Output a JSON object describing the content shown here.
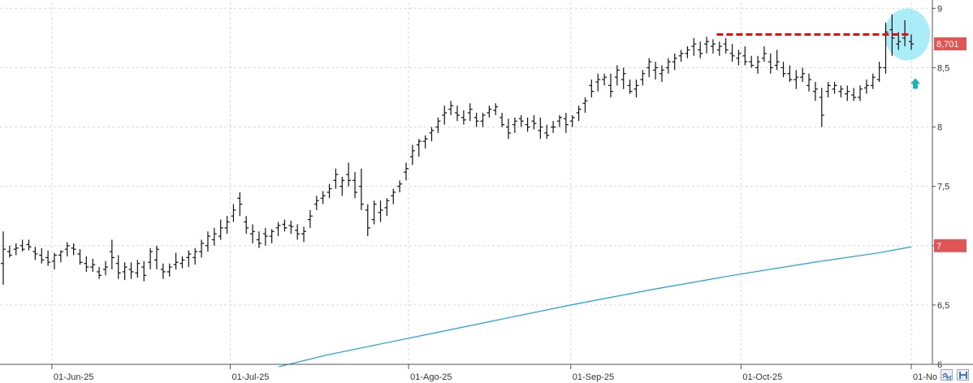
{
  "chart_data": {
    "type": "ohlc",
    "y_axis": {
      "side": "right",
      "range": [
        6,
        9.05
      ],
      "ticks": [
        {
          "value": 9,
          "label": "9"
        },
        {
          "value": 8.5,
          "label": "8,5"
        },
        {
          "value": 8,
          "label": "8"
        },
        {
          "value": 7.5,
          "label": "7,5"
        },
        {
          "value": 7,
          "label": "7"
        },
        {
          "value": 6.5,
          "label": "6,5"
        },
        {
          "value": 6,
          "label": "6"
        }
      ],
      "grid": true
    },
    "x_axis": {
      "range": [
        0,
        112
      ],
      "ticks": [
        {
          "x": 6,
          "label": "01-Jun-25"
        },
        {
          "x": 28,
          "label": "01-Jul-25"
        },
        {
          "x": 50,
          "label": "01-Ago-25"
        },
        {
          "x": 70,
          "label": "01-Sep-25"
        },
        {
          "x": 91,
          "label": "01-Oct-25"
        },
        {
          "x": 112,
          "label": "01-No"
        }
      ],
      "grid": true
    },
    "bars": [
      [
        6.85,
        7.12,
        6.67,
        6.97
      ],
      [
        6.95,
        7.0,
        6.9,
        6.92
      ],
      [
        6.97,
        7.02,
        6.92,
        6.98
      ],
      [
        7.0,
        7.05,
        6.95,
        6.97
      ],
      [
        7.01,
        7.05,
        6.96,
        6.99
      ],
      [
        6.95,
        6.99,
        6.88,
        6.93
      ],
      [
        6.92,
        6.98,
        6.85,
        6.88
      ],
      [
        6.9,
        6.96,
        6.83,
        6.86
      ],
      [
        6.87,
        6.94,
        6.8,
        6.92
      ],
      [
        6.92,
        6.96,
        6.86,
        6.95
      ],
      [
        6.97,
        7.03,
        6.91,
        7.0
      ],
      [
        6.98,
        7.02,
        6.92,
        6.97
      ],
      [
        6.93,
        6.97,
        6.84,
        6.86
      ],
      [
        6.85,
        6.91,
        6.78,
        6.82
      ],
      [
        6.82,
        6.89,
        6.78,
        6.84
      ],
      [
        6.78,
        6.82,
        6.72,
        6.75
      ],
      [
        6.8,
        6.87,
        6.75,
        6.82
      ],
      [
        6.95,
        7.05,
        6.8,
        6.9
      ],
      [
        6.85,
        6.92,
        6.72,
        6.77
      ],
      [
        6.78,
        6.86,
        6.71,
        6.82
      ],
      [
        6.8,
        6.86,
        6.72,
        6.78
      ],
      [
        6.77,
        6.88,
        6.73,
        6.85
      ],
      [
        6.82,
        6.87,
        6.7,
        6.75
      ],
      [
        6.86,
        6.98,
        6.8,
        6.95
      ],
      [
        6.88,
        7.0,
        6.8,
        6.97
      ],
      [
        6.8,
        6.85,
        6.72,
        6.78
      ],
      [
        6.78,
        6.85,
        6.74,
        6.82
      ],
      [
        6.84,
        6.94,
        6.8,
        6.86
      ],
      [
        6.85,
        6.91,
        6.81,
        6.88
      ],
      [
        6.9,
        6.96,
        6.82,
        6.93
      ],
      [
        6.9,
        6.98,
        6.84,
        6.95
      ],
      [
        6.95,
        7.05,
        6.9,
        7.02
      ],
      [
        7.0,
        7.12,
        6.95,
        7.08
      ],
      [
        7.05,
        7.15,
        7.0,
        7.1
      ],
      [
        7.08,
        7.22,
        7.05,
        7.15
      ],
      [
        7.15,
        7.25,
        7.1,
        7.2
      ],
      [
        7.25,
        7.35,
        7.2,
        7.3
      ],
      [
        7.4,
        7.45,
        7.25,
        7.35
      ],
      [
        7.2,
        7.25,
        7.1,
        7.15
      ],
      [
        7.1,
        7.18,
        7.02,
        7.12
      ],
      [
        7.05,
        7.12,
        6.98,
        7.02
      ],
      [
        7.1,
        7.15,
        7.0,
        7.08
      ],
      [
        7.08,
        7.14,
        7.02,
        7.12
      ],
      [
        7.15,
        7.2,
        7.08,
        7.17
      ],
      [
        7.18,
        7.22,
        7.12,
        7.15
      ],
      [
        7.17,
        7.21,
        7.1,
        7.16
      ],
      [
        7.13,
        7.18,
        7.05,
        7.1
      ],
      [
        7.1,
        7.16,
        7.03,
        7.12
      ],
      [
        7.22,
        7.3,
        7.15,
        7.25
      ],
      [
        7.35,
        7.42,
        7.3,
        7.38
      ],
      [
        7.4,
        7.46,
        7.35,
        7.42
      ],
      [
        7.45,
        7.52,
        7.4,
        7.48
      ],
      [
        7.55,
        7.65,
        7.48,
        7.6
      ],
      [
        7.5,
        7.58,
        7.42,
        7.55
      ],
      [
        7.6,
        7.7,
        7.5,
        7.55
      ],
      [
        7.55,
        7.62,
        7.4,
        7.45
      ],
      [
        7.5,
        7.65,
        7.3,
        7.35
      ],
      [
        7.3,
        7.35,
        7.08,
        7.15
      ],
      [
        7.22,
        7.38,
        7.18,
        7.35
      ],
      [
        7.28,
        7.38,
        7.2,
        7.3
      ],
      [
        7.32,
        7.4,
        7.25,
        7.38
      ],
      [
        7.42,
        7.48,
        7.35,
        7.45
      ],
      [
        7.5,
        7.55,
        7.45,
        7.52
      ],
      [
        7.62,
        7.7,
        7.55,
        7.65
      ],
      [
        7.75,
        7.85,
        7.68,
        7.8
      ],
      [
        7.85,
        7.9,
        7.75,
        7.88
      ],
      [
        7.88,
        7.93,
        7.82,
        7.9
      ],
      [
        7.95,
        8.0,
        7.88,
        7.97
      ],
      [
        8.0,
        8.08,
        7.95,
        8.05
      ],
      [
        8.1,
        8.18,
        8.02,
        8.12
      ],
      [
        8.15,
        8.22,
        8.1,
        8.18
      ],
      [
        8.12,
        8.18,
        8.05,
        8.1
      ],
      [
        8.08,
        8.14,
        8.02,
        8.06
      ],
      [
        8.12,
        8.2,
        8.05,
        8.15
      ],
      [
        8.08,
        8.12,
        8.0,
        8.05
      ],
      [
        8.05,
        8.12,
        8.0,
        8.1
      ],
      [
        8.12,
        8.18,
        8.08,
        8.15
      ],
      [
        8.14,
        8.2,
        8.1,
        8.17
      ],
      [
        8.08,
        8.12,
        8.0,
        8.02
      ],
      [
        8.0,
        8.07,
        7.9,
        7.95
      ],
      [
        8.02,
        8.08,
        7.95,
        8.05
      ],
      [
        8.07,
        8.1,
        8.0,
        8.05
      ],
      [
        8.02,
        8.08,
        7.96,
        8.0
      ],
      [
        8.05,
        8.1,
        7.98,
        8.03
      ],
      [
        7.97,
        8.08,
        7.9,
        8.0
      ],
      [
        7.95,
        8.02,
        7.9,
        7.93
      ],
      [
        8.0,
        8.05,
        7.95,
        8.0
      ],
      [
        8.05,
        8.1,
        8.0,
        8.08
      ],
      [
        8.07,
        8.12,
        7.95,
        8.02
      ],
      [
        8.05,
        8.1,
        8.0,
        8.08
      ],
      [
        8.12,
        8.18,
        8.05,
        8.15
      ],
      [
        8.2,
        8.25,
        8.12,
        8.22
      ],
      [
        8.35,
        8.4,
        8.25,
        8.3
      ],
      [
        8.38,
        8.45,
        8.3,
        8.4
      ],
      [
        8.4,
        8.45,
        8.35,
        8.42
      ],
      [
        8.35,
        8.45,
        8.25,
        8.3
      ],
      [
        8.42,
        8.52,
        8.35,
        8.48
      ],
      [
        8.4,
        8.5,
        8.32,
        8.45
      ],
      [
        8.35,
        8.4,
        8.28,
        8.3
      ],
      [
        8.32,
        8.4,
        8.25,
        8.35
      ],
      [
        8.4,
        8.48,
        8.35,
        8.45
      ],
      [
        8.5,
        8.58,
        8.42,
        8.55
      ],
      [
        8.48,
        8.55,
        8.4,
        8.5
      ],
      [
        8.45,
        8.52,
        8.38,
        8.48
      ],
      [
        8.5,
        8.58,
        8.45,
        8.55
      ],
      [
        8.55,
        8.62,
        8.48,
        8.58
      ],
      [
        8.6,
        8.65,
        8.55,
        8.62
      ],
      [
        8.62,
        8.68,
        8.58,
        8.65
      ],
      [
        8.68,
        8.75,
        8.6,
        8.7
      ],
      [
        8.65,
        8.72,
        8.58,
        8.62
      ],
      [
        8.7,
        8.76,
        8.62,
        8.72
      ],
      [
        8.68,
        8.74,
        8.62,
        8.7
      ],
      [
        8.65,
        8.72,
        8.6,
        8.68
      ],
      [
        8.7,
        8.75,
        8.62,
        8.65
      ],
      [
        8.62,
        8.7,
        8.55,
        8.6
      ],
      [
        8.58,
        8.65,
        8.52,
        8.62
      ],
      [
        8.6,
        8.68,
        8.52,
        8.55
      ],
      [
        8.55,
        8.6,
        8.5,
        8.52
      ],
      [
        8.5,
        8.6,
        8.45,
        8.55
      ],
      [
        8.58,
        8.68,
        8.55,
        8.62
      ],
      [
        8.55,
        8.62,
        8.45,
        8.5
      ],
      [
        8.52,
        8.65,
        8.48,
        8.55
      ],
      [
        8.5,
        8.55,
        8.42,
        8.45
      ],
      [
        8.45,
        8.52,
        8.38,
        8.4
      ],
      [
        8.4,
        8.48,
        8.32,
        8.42
      ],
      [
        8.42,
        8.5,
        8.38,
        8.45
      ],
      [
        8.35,
        8.45,
        8.3,
        8.4
      ],
      [
        8.3,
        8.38,
        8.22,
        8.32
      ],
      [
        8.25,
        8.33,
        8.0,
        8.1
      ],
      [
        8.3,
        8.38,
        8.25,
        8.35
      ],
      [
        8.32,
        8.38,
        8.28,
        8.35
      ],
      [
        8.3,
        8.35,
        8.25,
        8.32
      ],
      [
        8.28,
        8.35,
        8.22,
        8.3
      ],
      [
        8.27,
        8.33,
        8.22,
        8.25
      ],
      [
        8.25,
        8.35,
        8.22,
        8.32
      ],
      [
        8.33,
        8.4,
        8.28,
        8.35
      ],
      [
        8.35,
        8.45,
        8.32,
        8.42
      ],
      [
        8.4,
        8.55,
        8.38,
        8.5
      ],
      [
        8.5,
        8.88,
        8.45,
        8.8
      ],
      [
        8.82,
        8.95,
        8.6,
        8.75
      ],
      [
        8.7,
        8.8,
        8.65,
        8.72
      ],
      [
        8.75,
        8.9,
        8.68,
        8.78
      ],
      [
        8.72,
        8.78,
        8.65,
        8.7
      ]
    ],
    "moving_average": {
      "color": "#1aa0d8",
      "x": [
        34,
        40,
        50,
        60,
        70,
        80,
        90,
        100,
        108,
        112
      ],
      "y": [
        5.98,
        6.08,
        6.22,
        6.36,
        6.5,
        6.63,
        6.75,
        6.86,
        6.94,
        6.99
      ]
    },
    "resistance_line": {
      "color": "#e01010",
      "value": 8.78,
      "x_range": [
        88,
        112
      ]
    },
    "highlight_circle": {
      "color": "#8ee6f5",
      "center": [
        111.5,
        8.78
      ]
    },
    "up_arrow": {
      "color": "#20b2b2",
      "x": 112.5,
      "y": 8.37
    },
    "price_tags": [
      {
        "value": 8.701,
        "label": "8,701",
        "color": "#e05555"
      },
      {
        "value": 7.0,
        "label": "7",
        "color": "#e05555"
      }
    ]
  },
  "toolbar": {
    "icons": [
      "wave-icon",
      "save-icon"
    ]
  }
}
